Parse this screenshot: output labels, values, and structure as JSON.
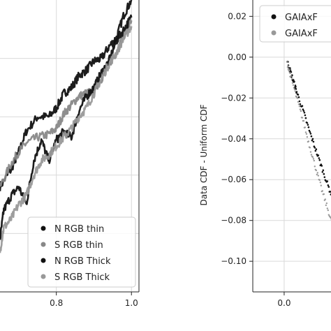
{
  "chart_data": [
    {
      "type": "line",
      "panel": "left",
      "title": "",
      "xlabel": "",
      "ylabel": "",
      "xlim": [
        0.65,
        1.02
      ],
      "ylim": [
        0,
        1
      ],
      "x_ticks": [
        0.8,
        1.0
      ],
      "x_tick_labels": [
        "0.8",
        "1.0"
      ],
      "grid": true,
      "legend_position": "bottom-right",
      "series": [
        {
          "name": "N RGB thin",
          "color": "#111111",
          "x": [
            0.65,
            0.68,
            0.7,
            0.72,
            0.75,
            0.78,
            0.8,
            0.82,
            0.84,
            0.86,
            0.88,
            0.9,
            0.92,
            0.94,
            0.96,
            0.98,
            1.0
          ],
          "y": [
            0.36,
            0.42,
            0.48,
            0.55,
            0.6,
            0.6,
            0.63,
            0.68,
            0.7,
            0.74,
            0.76,
            0.79,
            0.8,
            0.84,
            0.87,
            0.95,
            1.0
          ]
        },
        {
          "name": "S RGB thin",
          "color": "#888888",
          "x": [
            0.65,
            0.68,
            0.7,
            0.72,
            0.75,
            0.78,
            0.8,
            0.82,
            0.84,
            0.86,
            0.88,
            0.9,
            0.92,
            0.94,
            0.96,
            0.98,
            1.0
          ],
          "y": [
            0.36,
            0.44,
            0.48,
            0.51,
            0.53,
            0.54,
            0.56,
            0.61,
            0.64,
            0.67,
            0.68,
            0.69,
            0.73,
            0.78,
            0.82,
            0.88,
            0.93
          ]
        },
        {
          "name": "N RGB Thick",
          "color": "#111111",
          "x": [
            0.65,
            0.66,
            0.68,
            0.7,
            0.72,
            0.74,
            0.76,
            0.78,
            0.8,
            0.82,
            0.84,
            0.86,
            0.88,
            0.9,
            0.92,
            0.94,
            0.96,
            0.98,
            1.0
          ],
          "y": [
            0.18,
            0.28,
            0.33,
            0.36,
            0.3,
            0.45,
            0.52,
            0.45,
            0.52,
            0.55,
            0.53,
            0.62,
            0.67,
            0.7,
            0.75,
            0.79,
            0.86,
            0.9,
            0.94
          ]
        },
        {
          "name": "S RGB Thick",
          "color": "#999999",
          "x": [
            0.65,
            0.66,
            0.68,
            0.7,
            0.72,
            0.74,
            0.76,
            0.78,
            0.8,
            0.82,
            0.84,
            0.86,
            0.88,
            0.9,
            0.92,
            0.94,
            0.96,
            0.98,
            1.0
          ],
          "y": [
            0.14,
            0.22,
            0.25,
            0.3,
            0.33,
            0.4,
            0.45,
            0.47,
            0.5,
            0.53,
            0.56,
            0.6,
            0.63,
            0.68,
            0.73,
            0.78,
            0.82,
            0.87,
            0.91
          ]
        }
      ]
    },
    {
      "type": "scatter",
      "panel": "right",
      "title": "",
      "xlabel": "",
      "ylabel": "Data CDF - Uniform CDF",
      "xlim": [
        -0.1,
        0.55
      ],
      "ylim": [
        -0.115,
        0.028
      ],
      "x_ticks": [
        0.0
      ],
      "x_tick_labels": [
        "0.0"
      ],
      "y_ticks": [
        0.02,
        0.0,
        -0.02,
        -0.04,
        -0.06,
        -0.08,
        -0.1
      ],
      "y_tick_labels": [
        "0.02",
        "0.00",
        "−0.02",
        "−0.04",
        "−0.06",
        "−0.08",
        "−0.10"
      ],
      "grid": true,
      "legend_position": "top-right",
      "series": [
        {
          "name": "GAIAxF",
          "color": "#111111",
          "x": [
            0.01,
            0.02,
            0.03,
            0.04,
            0.06,
            0.08,
            0.1,
            0.12,
            0.14,
            0.16,
            0.18,
            0.2
          ],
          "y": [
            -0.002,
            -0.007,
            -0.012,
            -0.017,
            -0.026,
            -0.036,
            -0.045,
            -0.054,
            -0.063,
            -0.071,
            -0.079,
            -0.087
          ]
        },
        {
          "name": "GAIAxF",
          "color": "#999999",
          "x": [
            0.01,
            0.02,
            0.04,
            0.06,
            0.08,
            0.1,
            0.12,
            0.14,
            0.16,
            0.18,
            0.2
          ],
          "y": [
            -0.003,
            -0.009,
            -0.02,
            -0.031,
            -0.043,
            -0.054,
            -0.065,
            -0.075,
            -0.085,
            -0.094,
            -0.103
          ]
        }
      ]
    }
  ]
}
